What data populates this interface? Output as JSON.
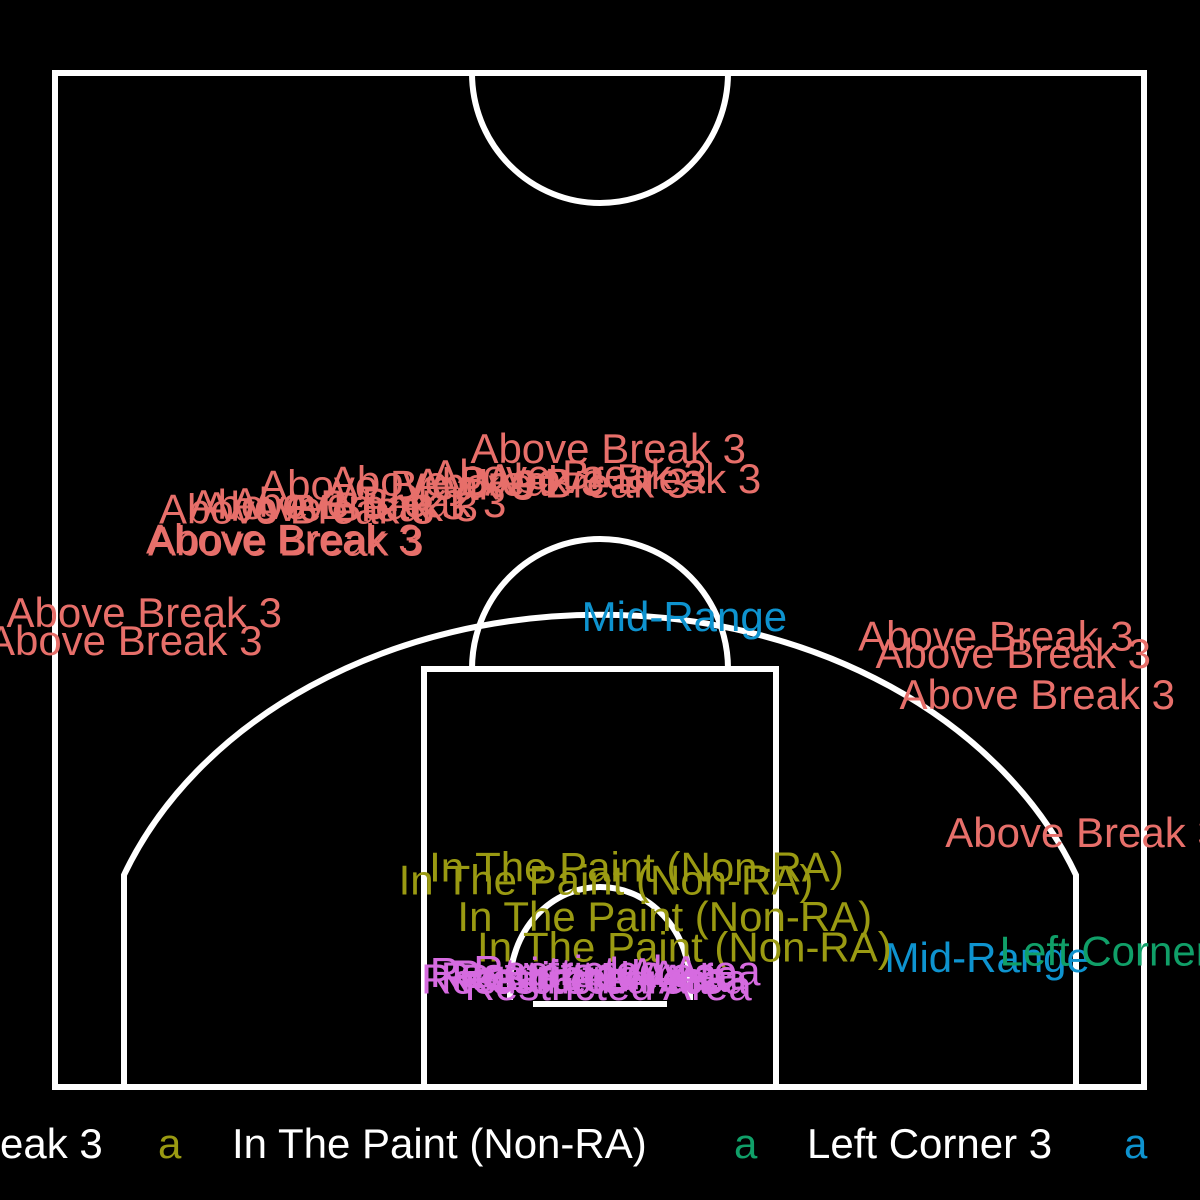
{
  "chart_data": {
    "type": "scatter",
    "title": "",
    "xlabel": "",
    "ylabel": "",
    "xlim": [
      -25,
      25
    ],
    "ylim": [
      0,
      47
    ],
    "grid": false,
    "legend": {
      "placement": "bottom"
    },
    "court_color": "#ffffff",
    "background": "#000000",
    "zones": [
      {
        "name": "Above Break 3",
        "color": "#E76F6A"
      },
      {
        "name": "In The Paint (Non-RA)",
        "color": "#9A9A12"
      },
      {
        "name": "Left Corner 3",
        "color": "#109F68"
      },
      {
        "name": "Mid-Range",
        "color": "#0E93CF"
      },
      {
        "name": "Restricted Area",
        "color": "#D66BE0"
      }
    ],
    "legend_key_glyph": "a",
    "legend_text_visible": [
      "eak 3",
      "In The Paint (Non-RA)",
      "Left Corner 3",
      ""
    ],
    "points": [
      {
        "zone": "Above Break 3",
        "x": 0.4,
        "y": 29.6
      },
      {
        "zone": "Above Break 3",
        "x": 1.1,
        "y": 28.2
      },
      {
        "zone": "Above Break 3",
        "x": -1.4,
        "y": 28.4
      },
      {
        "zone": "Above Break 3",
        "x": -2.2,
        "y": 28.0
      },
      {
        "zone": "Above Break 3",
        "x": -6.1,
        "y": 28.1
      },
      {
        "zone": "Above Break 3",
        "x": -10.6,
        "y": 27.1
      },
      {
        "zone": "Above Break 3",
        "x": -14.5,
        "y": 25.4
      },
      {
        "zone": "Above Break 3",
        "x": -14.4,
        "y": 25.3
      },
      {
        "zone": "Above Break 3",
        "x": -13.9,
        "y": 26.8
      },
      {
        "zone": "Above Break 3",
        "x": -11.9,
        "y": 26.9
      },
      {
        "zone": "Above Break 3",
        "x": -12.5,
        "y": 27.0
      },
      {
        "zone": "Above Break 3",
        "x": -9.3,
        "y": 27.9
      },
      {
        "zone": "Above Break 3",
        "x": -20.9,
        "y": 22.0
      },
      {
        "zone": "Above Break 3",
        "x": -21.8,
        "y": 20.7
      },
      {
        "zone": "Above Break 3",
        "x": 18.2,
        "y": 20.9
      },
      {
        "zone": "Above Break 3",
        "x": 19.0,
        "y": 20.1
      },
      {
        "zone": "Above Break 3",
        "x": 20.1,
        "y": 18.2
      },
      {
        "zone": "Above Break 3",
        "x": 22.2,
        "y": 11.8
      },
      {
        "zone": "Mid-Range",
        "x": 3.9,
        "y": 21.8
      },
      {
        "zone": "Mid-Range",
        "x": 17.8,
        "y": 6.0
      },
      {
        "zone": "In The Paint (Non-RA)",
        "x": 1.7,
        "y": 10.2
      },
      {
        "zone": "In The Paint (Non-RA)",
        "x": 0.3,
        "y": 9.6
      },
      {
        "zone": "In The Paint (Non-RA)",
        "x": 3.0,
        "y": 7.9
      },
      {
        "zone": "In The Paint (Non-RA)",
        "x": 3.9,
        "y": 6.5
      },
      {
        "zone": "Left Corner 3",
        "x": 24.0,
        "y": 6.3
      },
      {
        "zone": "Restricted Area",
        "x": 0.8,
        "y": 5.4
      },
      {
        "zone": "Restricted Area",
        "x": -0.7,
        "y": 5.1
      },
      {
        "zone": "Restricted Area",
        "x": -1.2,
        "y": 5.3
      },
      {
        "zone": "Restricted Area",
        "x": -1.6,
        "y": 5.0
      },
      {
        "zone": "Restricted Area",
        "x": 0.2,
        "y": 5.0
      },
      {
        "zone": "Restricted Area",
        "x": 0.4,
        "y": 4.7
      },
      {
        "zone": "Restricted Area",
        "x": -0.2,
        "y": 5.2
      }
    ]
  }
}
